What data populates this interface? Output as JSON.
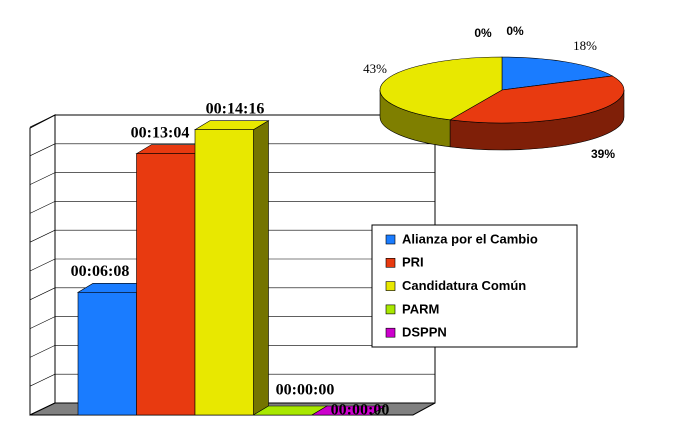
{
  "chart_data": [
    {
      "type": "bar3d",
      "categories": [
        "Alianza por el Cambio",
        "PRI",
        "Candidatura Común",
        "PARM",
        "DSPPN"
      ],
      "values": [
        368,
        784,
        856,
        0,
        0
      ],
      "value_labels": [
        "00:06:08",
        "00:13:04",
        "00:14:16",
        "00:00:00",
        "00:00:00"
      ],
      "colors": [
        "#1a7cff",
        "#e83a10",
        "#e8e800",
        "#a8e800",
        "#cc00cc"
      ],
      "ylim": [
        0,
        864
      ],
      "yticks": [
        0,
        86.4,
        172.8,
        259.2,
        345.6,
        432,
        518.4,
        604.8,
        691.2,
        777.6,
        864
      ],
      "grid": true
    },
    {
      "type": "pie3d",
      "values": [
        18,
        39,
        43,
        0,
        0
      ],
      "value_labels": [
        "18%",
        "39%",
        "43%",
        "0%",
        "0%"
      ],
      "colors": [
        "#1a7cff",
        "#e83a10",
        "#e8e800",
        "#a8e800",
        "#cc00cc"
      ]
    }
  ]
}
